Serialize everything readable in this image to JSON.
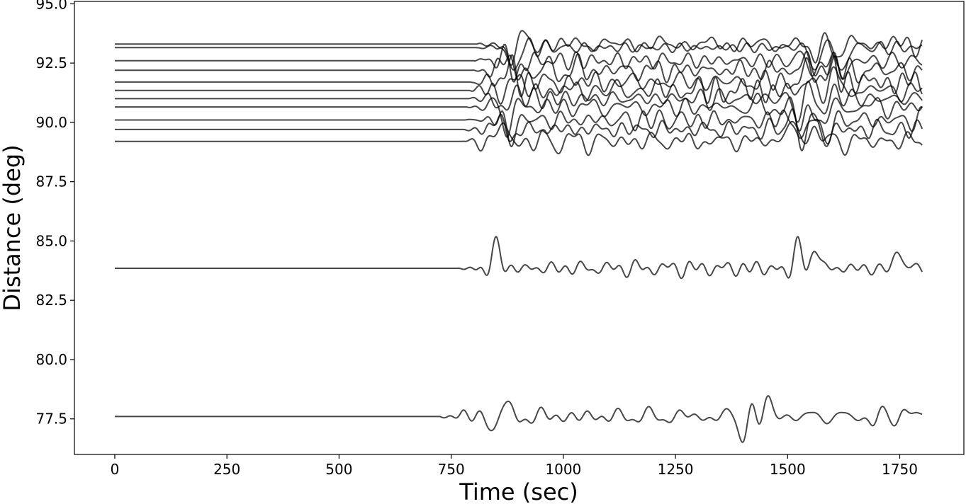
{
  "chart_data": {
    "type": "line",
    "title": "",
    "xlabel": "Time (sec)",
    "ylabel": "Distance (deg)",
    "xlim": [
      -90,
      1893
    ],
    "ylim": [
      76.0,
      95.1
    ],
    "xticks": [
      "0",
      "250",
      "500",
      "750",
      "1000",
      "1250",
      "1500",
      "1750"
    ],
    "xtick_values": [
      0,
      250,
      500,
      750,
      1000,
      1250,
      1500,
      1750
    ],
    "yticks": [
      "77.5",
      "80.0",
      "82.5",
      "85.0",
      "87.5",
      "90.0",
      "92.5",
      "95.0"
    ],
    "ytick_values": [
      77.5,
      80.0,
      82.5,
      85.0,
      87.5,
      90.0,
      92.5,
      95.0
    ],
    "grid": false,
    "line_color": "#000000",
    "time_range": [
      0,
      1800
    ],
    "series": [
      {
        "distance": 77.6,
        "onset": 725,
        "amp": 0.28,
        "events": [
          [
            855,
            0.9
          ],
          [
            1410,
            1.6
          ],
          [
            1445,
            1.5
          ],
          [
            1700,
            0.7
          ],
          [
            1750,
            0.8
          ]
        ]
      },
      {
        "distance": 83.85,
        "onset": 765,
        "amp": 0.28,
        "events": [
          [
            845,
            1.2
          ],
          [
            1520,
            1.3
          ],
          [
            1560,
            0.9
          ],
          [
            1740,
            0.9
          ]
        ]
      },
      {
        "distance": 89.2,
        "onset": 775,
        "amp": 0.38,
        "events": [
          [
            870,
            1.0
          ],
          [
            1510,
            1.2
          ],
          [
            1565,
            1.0
          ]
        ]
      },
      {
        "distance": 89.7,
        "onset": 778,
        "amp": 0.38,
        "events": [
          [
            872,
            1.0
          ],
          [
            1520,
            1.2
          ],
          [
            1572,
            1.0
          ]
        ]
      },
      {
        "distance": 90.1,
        "onset": 781,
        "amp": 0.38,
        "events": [
          [
            874,
            1.0
          ],
          [
            1525,
            1.2
          ],
          [
            1580,
            1.1
          ]
        ]
      },
      {
        "distance": 90.65,
        "onset": 785,
        "amp": 0.38,
        "events": [
          [
            877,
            1.0
          ],
          [
            1530,
            1.1
          ],
          [
            1587,
            1.0
          ]
        ]
      },
      {
        "distance": 91.0,
        "onset": 788,
        "amp": 0.38,
        "events": [
          [
            879,
            1.0
          ],
          [
            1535,
            1.1
          ],
          [
            1593,
            1.0
          ]
        ]
      },
      {
        "distance": 91.35,
        "onset": 790,
        "amp": 0.38,
        "events": [
          [
            881,
            1.0
          ],
          [
            1540,
            1.0
          ],
          [
            1598,
            1.0
          ]
        ]
      },
      {
        "distance": 91.7,
        "onset": 793,
        "amp": 0.38,
        "events": [
          [
            883,
            1.0
          ],
          [
            1545,
            1.0
          ],
          [
            1603,
            1.0
          ]
        ]
      },
      {
        "distance": 92.2,
        "onset": 797,
        "amp": 0.38,
        "events": [
          [
            885,
            1.0
          ],
          [
            1550,
            1.0
          ],
          [
            1610,
            1.0
          ]
        ]
      },
      {
        "distance": 92.6,
        "onset": 800,
        "amp": 0.38,
        "events": [
          [
            887,
            1.0
          ],
          [
            1555,
            1.0
          ],
          [
            1615,
            1.0
          ]
        ]
      },
      {
        "distance": 93.15,
        "onset": 805,
        "amp": 0.3,
        "events": [
          [
            889,
            1.1
          ],
          [
            1560,
            1.0
          ],
          [
            1622,
            1.2
          ]
        ]
      },
      {
        "distance": 93.3,
        "onset": 807,
        "amp": 0.3,
        "events": [
          [
            890,
            1.0
          ],
          [
            1565,
            0.9
          ],
          [
            1628,
            1.0
          ]
        ]
      }
    ]
  }
}
